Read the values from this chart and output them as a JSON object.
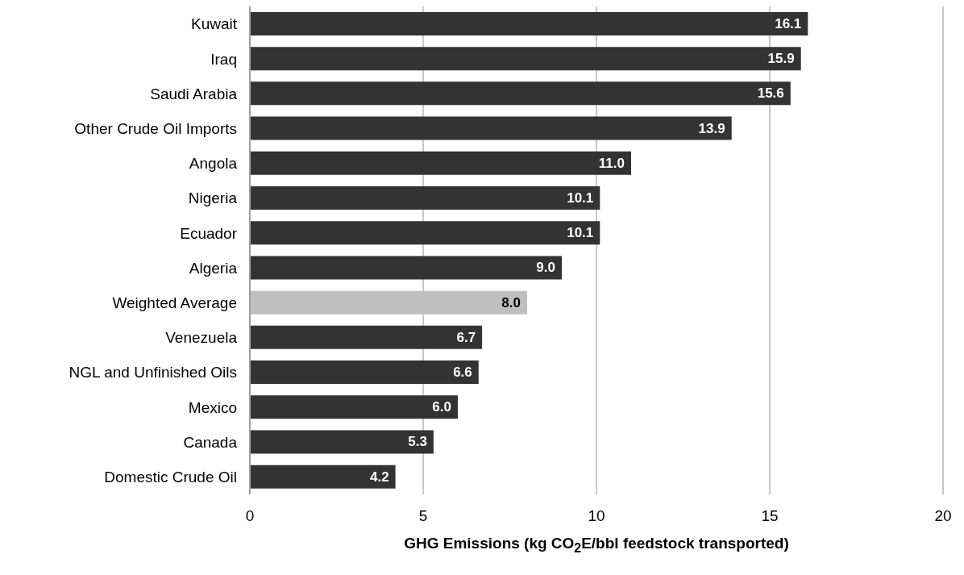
{
  "chart_data": {
    "type": "bar",
    "orientation": "horizontal",
    "xlabel": "GHG Emissions (kg CO$_{2}$E/bbl feedstock transported)",
    "categories": [
      "Kuwait",
      "Iraq",
      "Saudi Arabia",
      "Other Crude Oil Imports",
      "Angola",
      "Nigeria",
      "Ecuador",
      "Algeria",
      "Weighted Average",
      "Venezuela",
      "NGL and Unfinished Oils",
      "Mexico",
      "Canada",
      "Domestic Crude Oil"
    ],
    "values": [
      16.1,
      15.9,
      15.6,
      13.9,
      11.0,
      10.1,
      10.1,
      9.0,
      8.0,
      6.7,
      6.6,
      6.0,
      5.3,
      4.2
    ],
    "colors": [
      "#333333",
      "#333333",
      "#333333",
      "#333333",
      "#333333",
      "#333333",
      "#333333",
      "#333333",
      "#bfbfbf",
      "#333333",
      "#333333",
      "#333333",
      "#333333",
      "#333333"
    ],
    "value_labels": [
      "16.1",
      "15.9",
      "15.6",
      "13.9",
      "11.0",
      "10.1",
      "10.1",
      "9.0",
      "8.0",
      "6.7",
      "6.6",
      "6.0",
      "5.3",
      "4.2"
    ],
    "xlim": [
      0,
      20
    ],
    "xticks": [
      0,
      5,
      10,
      15,
      20
    ],
    "grid": "x"
  }
}
